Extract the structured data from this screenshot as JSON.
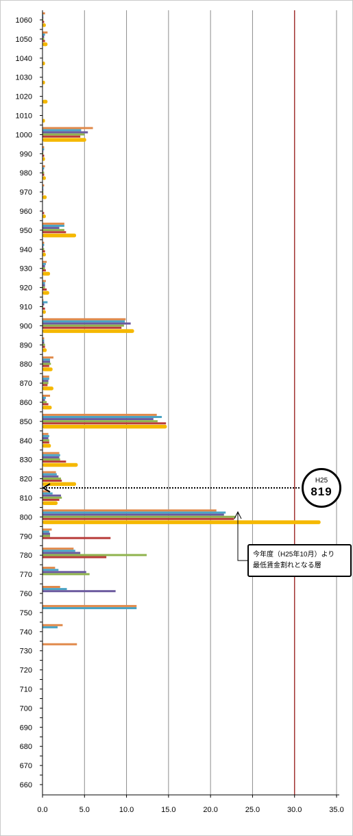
{
  "chart_data": {
    "type": "bar",
    "orientation": "horizontal",
    "xlim": [
      0,
      35
    ],
    "x_ticks": [
      "0.0",
      "5.0",
      "10.0",
      "15.0",
      "20.0",
      "25.0",
      "30.0",
      "35.0"
    ],
    "ylim": [
      660,
      1060
    ],
    "y_ticks": [
      "1060",
      "1050",
      "1040",
      "1030",
      "1020",
      "1010",
      "1000",
      "990",
      "980",
      "970",
      "960",
      "950",
      "940",
      "930",
      "920",
      "910",
      "900",
      "890",
      "880",
      "870",
      "860",
      "850",
      "840",
      "830",
      "820",
      "810",
      "800",
      "790",
      "780",
      "770",
      "760",
      "750",
      "740",
      "730",
      "720",
      "710",
      "700",
      "690",
      "680",
      "670",
      "660"
    ],
    "grid": "vertical",
    "reference_line": {
      "x": 30,
      "color": "#a0302f"
    },
    "colors": [
      "#e0894a",
      "#4aa3c4",
      "#6b5a9e",
      "#8fb34d",
      "#b83c3a",
      "#f5b800"
    ],
    "bars": [
      {
        "y": 1060,
        "values": [
          0.3,
          0.1,
          0.1,
          0.1,
          0.2,
          0.4
        ]
      },
      {
        "y": 1050,
        "values": [
          0.6,
          0.3,
          0.2,
          0.2,
          0.3,
          0.6
        ]
      },
      {
        "y": 1040,
        "values": [
          0,
          0,
          0,
          0,
          0,
          0.3
        ]
      },
      {
        "y": 1030,
        "values": [
          0,
          0,
          0,
          0,
          0,
          0.3
        ]
      },
      {
        "y": 1020,
        "values": [
          0,
          0,
          0,
          0,
          0,
          0.6
        ]
      },
      {
        "y": 1010,
        "values": [
          0,
          0,
          0,
          0,
          0,
          0.3
        ]
      },
      {
        "y": 1000,
        "values": [
          6.0,
          4.6,
          5.4,
          5.0,
          4.5,
          5.2
        ]
      },
      {
        "y": 990,
        "values": [
          0.2,
          0.2,
          0.1,
          0.1,
          0.2,
          0.3
        ]
      },
      {
        "y": 980,
        "values": [
          0.3,
          0.2,
          0.1,
          0.2,
          0.2,
          0.4
        ]
      },
      {
        "y": 970,
        "values": [
          0.2,
          0.1,
          0.1,
          0.1,
          0.1,
          0.5
        ]
      },
      {
        "y": 960,
        "values": [
          0,
          0,
          0,
          0,
          0.2,
          0.4
        ]
      },
      {
        "y": 950,
        "values": [
          2.6,
          2.6,
          2.0,
          2.6,
          2.8,
          4.0
        ]
      },
      {
        "y": 940,
        "values": [
          0.2,
          0.2,
          0.1,
          0.2,
          0.3,
          0.4
        ]
      },
      {
        "y": 930,
        "values": [
          0.5,
          0.4,
          0.3,
          0.3,
          0.4,
          0.9
        ]
      },
      {
        "y": 920,
        "values": [
          0.4,
          0.3,
          0.3,
          0.3,
          0.5,
          0.8
        ]
      },
      {
        "y": 910,
        "values": [
          0.1,
          0.6,
          0.2,
          0.1,
          0.3,
          0.4
        ]
      },
      {
        "y": 900,
        "values": [
          9.9,
          9.8,
          10.5,
          9.7,
          9.4,
          10.9
        ]
      },
      {
        "y": 890,
        "values": [
          0.2,
          0.2,
          0.2,
          0.3,
          0.3,
          0.5
        ]
      },
      {
        "y": 880,
        "values": [
          1.3,
          0.9,
          0.9,
          1.0,
          0.8,
          1.2
        ]
      },
      {
        "y": 870,
        "values": [
          0.8,
          0.8,
          0.7,
          0.7,
          0.6,
          1.3
        ]
      },
      {
        "y": 860,
        "values": [
          0.9,
          0.4,
          0.3,
          0.5,
          0.7,
          1.1
        ]
      },
      {
        "y": 850,
        "values": [
          13.6,
          14.2,
          13.2,
          13.7,
          14.7,
          14.8
        ]
      },
      {
        "y": 840,
        "values": [
          0.7,
          0.8,
          0.7,
          0.8,
          0.8,
          1.0
        ]
      },
      {
        "y": 830,
        "values": [
          2.0,
          2.1,
          2.0,
          2.1,
          2.8,
          4.2
        ]
      },
      {
        "y": 820,
        "values": [
          1.6,
          1.7,
          1.9,
          2.2,
          2.3,
          4.0
        ]
      },
      {
        "y": 810,
        "values": [
          0.8,
          1.2,
          2.2,
          2.3,
          2.0,
          1.8
        ]
      },
      {
        "y": 800,
        "values": [
          20.7,
          21.8,
          21.6,
          23.0,
          22.8,
          33.1
        ]
      },
      {
        "y": 790,
        "values": [
          1.1,
          0.8,
          0.9,
          0.9,
          8.1,
          0
        ]
      },
      {
        "y": 780,
        "values": [
          3.7,
          3.9,
          4.5,
          12.4,
          7.6,
          0
        ]
      },
      {
        "y": 770,
        "values": [
          1.5,
          1.9,
          5.2,
          5.6,
          0,
          0
        ]
      },
      {
        "y": 760,
        "values": [
          2.1,
          2.9,
          8.7,
          0,
          0,
          0
        ]
      },
      {
        "y": 750,
        "values": [
          11.2,
          11.2,
          0,
          0,
          0,
          0
        ]
      },
      {
        "y": 740,
        "values": [
          2.4,
          1.8,
          0,
          0,
          0,
          0
        ]
      },
      {
        "y": 730,
        "values": [
          4.1,
          0,
          0,
          0,
          0,
          0
        ]
      }
    ]
  },
  "callout": {
    "small": "H25",
    "big": "819"
  },
  "annotation": {
    "line1": "今年度（H25年10月）より",
    "line2": "最低賃金割れとなる層"
  }
}
